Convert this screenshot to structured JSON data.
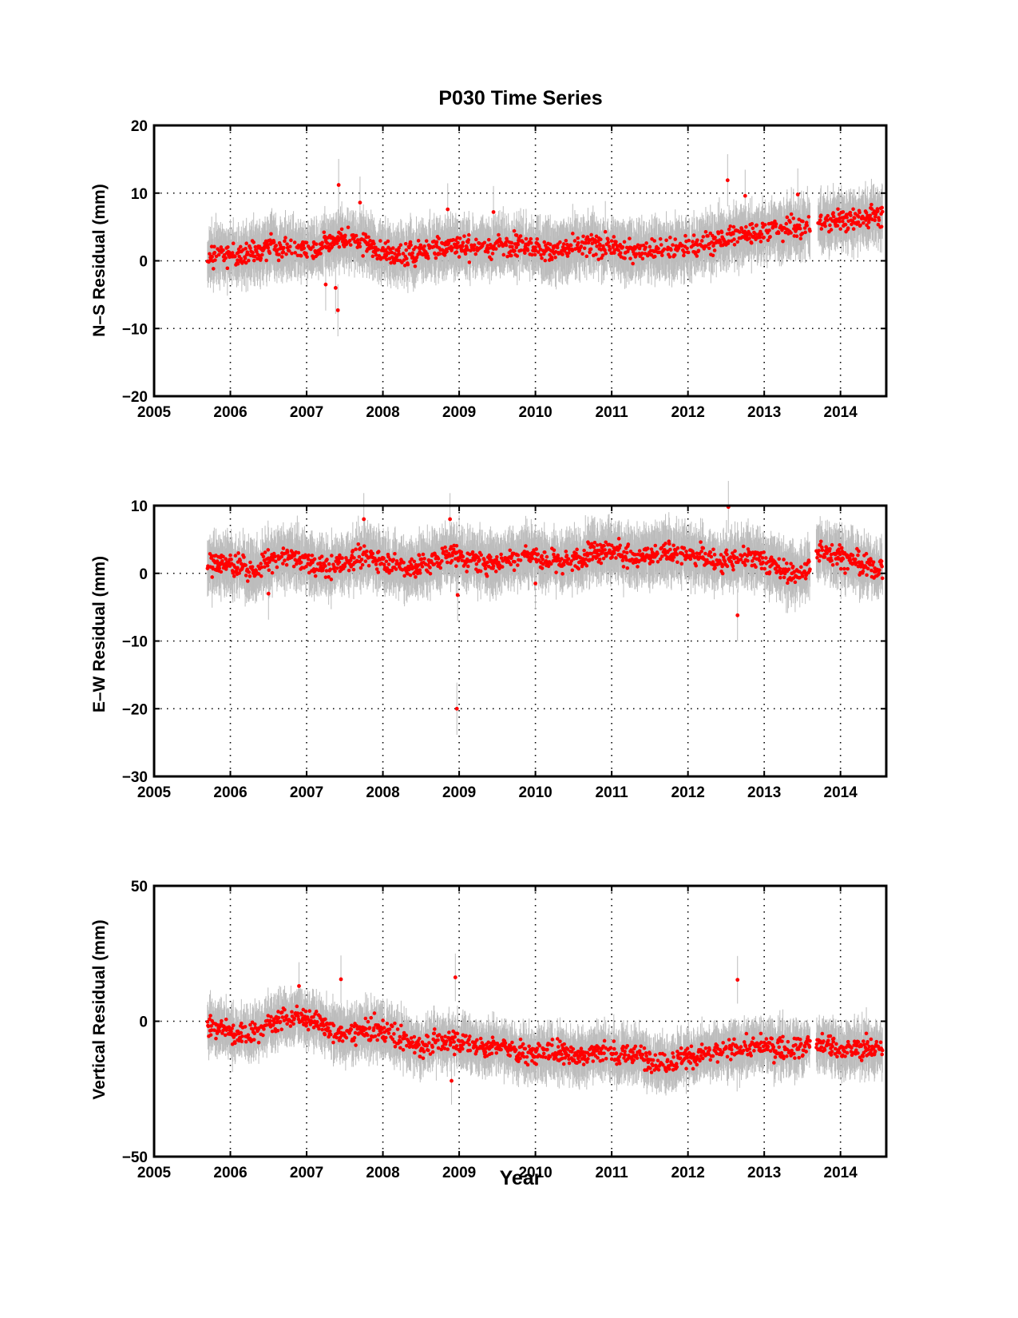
{
  "chart_data": [
    {
      "type": "scatter",
      "title": "P030 Time Series",
      "ylabel": "N–S Residual (mm)",
      "xlabel": "",
      "xlim": [
        2005,
        2014.6
      ],
      "ylim": [
        -20,
        20
      ],
      "xticks": [
        "2005",
        "2006",
        "2007",
        "2008",
        "2009",
        "2010",
        "2011",
        "2012",
        "2013",
        "2014"
      ],
      "yticks": [
        "−20",
        "−10",
        "0",
        "10",
        "20"
      ],
      "grid": "dotted",
      "series": [
        {
          "marker_color": "#ff0000",
          "errorbar_color": "#bdbdbd",
          "x": [
            2005.7,
            2005.9,
            2006.1,
            2006.3,
            2006.5,
            2006.7,
            2006.9,
            2007.1,
            2007.3,
            2007.45,
            2007.6,
            2007.8,
            2008.0,
            2008.2,
            2008.4,
            2008.6,
            2008.8,
            2009.0,
            2009.2,
            2009.4,
            2009.6,
            2009.8,
            2010.0,
            2010.2,
            2010.4,
            2010.6,
            2010.8,
            2011.0,
            2011.2,
            2011.4,
            2011.6,
            2011.8,
            2012.0,
            2012.2,
            2012.4,
            2012.6,
            2012.8,
            2013.0,
            2013.2,
            2013.4,
            2013.6,
            2013.8,
            2014.0,
            2014.2,
            2014.4,
            2014.55
          ],
          "y": [
            0.5,
            0.8,
            0.6,
            1.0,
            1.8,
            2.0,
            1.6,
            1.8,
            2.4,
            3.5,
            2.8,
            2.5,
            1.2,
            0.8,
            1.2,
            1.7,
            2.0,
            2.2,
            1.9,
            2.0,
            2.4,
            2.5,
            1.9,
            1.5,
            1.7,
            2.0,
            2.3,
            1.8,
            1.5,
            1.7,
            1.9,
            1.8,
            2.0,
            2.5,
            3.0,
            3.6,
            4.0,
            4.3,
            4.6,
            5.0,
            5.4,
            5.6,
            6.0,
            6.2,
            6.5,
            6.6
          ],
          "err": [
            3.5,
            3.5,
            3.5,
            3.5,
            3.5,
            3.5,
            3.5,
            3.5,
            3.5,
            4.5,
            3.5,
            3.5,
            3.5,
            3.5,
            3.5,
            3.5,
            3.5,
            3.5,
            3.5,
            3.5,
            3.5,
            3.5,
            3.5,
            3.5,
            3.5,
            3.5,
            3.5,
            3.5,
            3.5,
            3.5,
            3.5,
            3.5,
            3.5,
            3.5,
            3.5,
            3.5,
            3.5,
            3.5,
            3.5,
            3.5,
            3.5,
            3.5,
            3.5,
            3.5,
            3.5,
            3.5
          ],
          "scatter": 1.6,
          "gaps": [
            [
              2013.6,
              2013.7
            ]
          ],
          "outliers": [
            [
              2007.42,
              11.2
            ],
            [
              2007.38,
              -4.0
            ],
            [
              2007.41,
              -7.3
            ],
            [
              2007.7,
              8.6
            ],
            [
              2008.85,
              7.6
            ],
            [
              2009.45,
              7.2
            ],
            [
              2012.52,
              11.9
            ],
            [
              2012.75,
              9.6
            ],
            [
              2013.44,
              9.8
            ],
            [
              2007.25,
              -3.5
            ]
          ]
        }
      ]
    },
    {
      "type": "scatter",
      "title": "",
      "ylabel": "E–W Residual (mm)",
      "xlabel": "",
      "xlim": [
        2005,
        2014.6
      ],
      "ylim": [
        -30,
        10
      ],
      "xticks": [
        "2005",
        "2006",
        "2007",
        "2008",
        "2009",
        "2010",
        "2011",
        "2012",
        "2013",
        "2014"
      ],
      "yticks": [
        "−30",
        "−20",
        "−10",
        "0",
        "10"
      ],
      "grid": "dotted",
      "series": [
        {
          "marker_color": "#ff0000",
          "errorbar_color": "#bdbdbd",
          "x": [
            2005.7,
            2005.9,
            2006.1,
            2006.3,
            2006.5,
            2006.7,
            2006.9,
            2007.1,
            2007.3,
            2007.5,
            2007.7,
            2007.9,
            2008.1,
            2008.3,
            2008.5,
            2008.7,
            2008.9,
            2009.1,
            2009.3,
            2009.5,
            2009.7,
            2009.9,
            2010.1,
            2010.3,
            2010.5,
            2010.7,
            2010.9,
            2011.1,
            2011.3,
            2011.5,
            2011.7,
            2011.9,
            2012.1,
            2012.3,
            2012.5,
            2012.7,
            2012.9,
            2013.1,
            2013.3,
            2013.5,
            2013.6,
            2013.75,
            2013.9,
            2014.1,
            2014.3,
            2014.55
          ],
          "y": [
            1.0,
            1.5,
            1.0,
            0.3,
            1.5,
            2.5,
            2.2,
            1.2,
            0.8,
            1.5,
            2.5,
            2.5,
            1.5,
            0.8,
            1.2,
            2.0,
            3.0,
            2.0,
            1.6,
            1.6,
            2.3,
            3.0,
            2.2,
            1.6,
            2.0,
            3.0,
            3.5,
            3.2,
            2.2,
            2.5,
            3.2,
            3.0,
            2.5,
            2.0,
            1.5,
            2.5,
            2.2,
            1.2,
            0.2,
            0.0,
            1.0,
            3.5,
            3.0,
            2.0,
            1.0,
            0.5
          ],
          "err": [
            3.5,
            3.5,
            3.5,
            3.5,
            3.5,
            3.5,
            3.5,
            3.5,
            3.5,
            3.5,
            3.5,
            3.5,
            3.5,
            3.5,
            3.5,
            3.5,
            3.5,
            3.5,
            3.5,
            3.5,
            3.5,
            3.5,
            3.5,
            3.5,
            3.5,
            3.5,
            3.5,
            3.5,
            3.5,
            3.5,
            3.5,
            3.5,
            3.5,
            3.5,
            3.5,
            3.5,
            3.5,
            3.5,
            3.5,
            3.5,
            3.5,
            3.5,
            3.5,
            3.5,
            3.5,
            3.5
          ],
          "scatter": 1.6,
          "gaps": [
            [
              2013.6,
              2013.68
            ]
          ],
          "outliers": [
            [
              2008.97,
              -20.0
            ],
            [
              2008.98,
              -3.2
            ],
            [
              2012.65,
              -6.2
            ],
            [
              2012.53,
              9.8
            ],
            [
              2007.75,
              8.0
            ],
            [
              2008.88,
              8.0
            ],
            [
              2010.0,
              -1.5
            ],
            [
              2006.5,
              -3.0
            ]
          ]
        }
      ]
    },
    {
      "type": "scatter",
      "title": "",
      "ylabel": "Vertical Residual (mm)",
      "xlabel": "Year",
      "xlim": [
        2005,
        2014.6
      ],
      "ylim": [
        -50,
        50
      ],
      "xticks": [
        "2005",
        "2006",
        "2007",
        "2008",
        "2009",
        "2010",
        "2011",
        "2012",
        "2013",
        "2014"
      ],
      "yticks": [
        "−50",
        "0",
        "50"
      ],
      "grid": "dotted",
      "series": [
        {
          "marker_color": "#ff0000",
          "errorbar_color": "#bdbdbd",
          "x": [
            2005.7,
            2005.9,
            2006.1,
            2006.3,
            2006.5,
            2006.7,
            2006.9,
            2007.1,
            2007.3,
            2007.5,
            2007.7,
            2007.9,
            2008.1,
            2008.3,
            2008.5,
            2008.7,
            2008.9,
            2009.1,
            2009.3,
            2009.5,
            2009.7,
            2009.9,
            2010.1,
            2010.3,
            2010.5,
            2010.7,
            2010.9,
            2011.1,
            2011.3,
            2011.5,
            2011.7,
            2011.9,
            2012.1,
            2012.3,
            2012.5,
            2012.7,
            2012.9,
            2013.1,
            2013.3,
            2013.5,
            2013.65,
            2013.85,
            2014.05,
            2014.25,
            2014.55
          ],
          "y": [
            -2,
            -3,
            -5,
            -4,
            -1,
            1,
            2,
            0,
            -3,
            -5,
            -4,
            -3,
            -4,
            -7,
            -9,
            -8,
            -7,
            -8,
            -10,
            -9,
            -11,
            -12,
            -12,
            -11,
            -13,
            -12,
            -11,
            -13,
            -12,
            -14,
            -15,
            -14,
            -13,
            -12,
            -11,
            -10,
            -9,
            -10,
            -9,
            -10,
            -9,
            -9,
            -11,
            -10,
            -10
          ],
          "err": [
            8,
            8,
            8,
            8,
            8,
            8,
            8,
            8,
            8,
            8,
            8,
            8,
            8,
            8,
            8,
            8,
            8,
            8,
            8,
            8,
            8,
            8,
            8,
            8,
            8,
            8,
            8,
            8,
            8,
            8,
            8,
            8,
            8,
            8,
            8,
            8,
            8,
            8,
            8,
            8,
            8,
            8,
            8,
            8,
            8
          ],
          "scatter": 4,
          "gaps": [
            [
              2013.6,
              2013.68
            ]
          ],
          "outliers": [
            [
              2007.45,
              15.5
            ],
            [
              2008.95,
              16.2
            ],
            [
              2012.65,
              15.3
            ],
            [
              2006.9,
              13.0
            ],
            [
              2008.9,
              -22.0
            ]
          ]
        }
      ]
    }
  ]
}
